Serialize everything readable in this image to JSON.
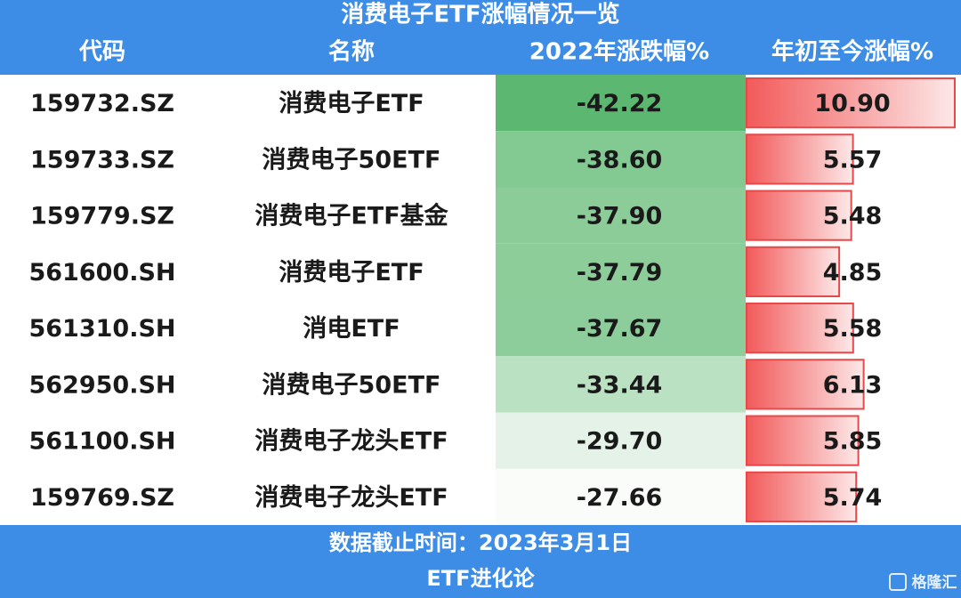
{
  "header": {
    "title": "消费电子ETF涨幅情况一览",
    "columns": [
      "代码",
      "名称",
      "2022年涨跌幅%",
      "年初至今涨幅%"
    ]
  },
  "table": {
    "rows": [
      [
        "159732.SZ",
        "消费电子ETF",
        "-42.22",
        "10.90"
      ],
      [
        "159733.SZ",
        "消费电子50ETF",
        "-38.60",
        "5.57"
      ],
      [
        "159779.SZ",
        "消费电子ETF基金",
        "-37.90",
        "5.48"
      ],
      [
        "561600.SH",
        "消费电子ETF",
        "-37.79",
        "4.85"
      ],
      [
        "561310.SH",
        "消电ETF",
        "-37.67",
        "5.58"
      ],
      [
        "562950.SH",
        "消费电子50ETF",
        "-33.44",
        "6.13"
      ],
      [
        "561100.SH",
        "消费电子龙头ETF",
        "-29.70",
        "5.85"
      ],
      [
        "159769.SZ",
        "消费电子龙头ETF",
        "-27.66",
        "5.74"
      ]
    ]
  },
  "footer": {
    "date": "数据截止时间：2023年3月1日",
    "source": "ETF进化论"
  },
  "watermark": "格隆汇"
}
